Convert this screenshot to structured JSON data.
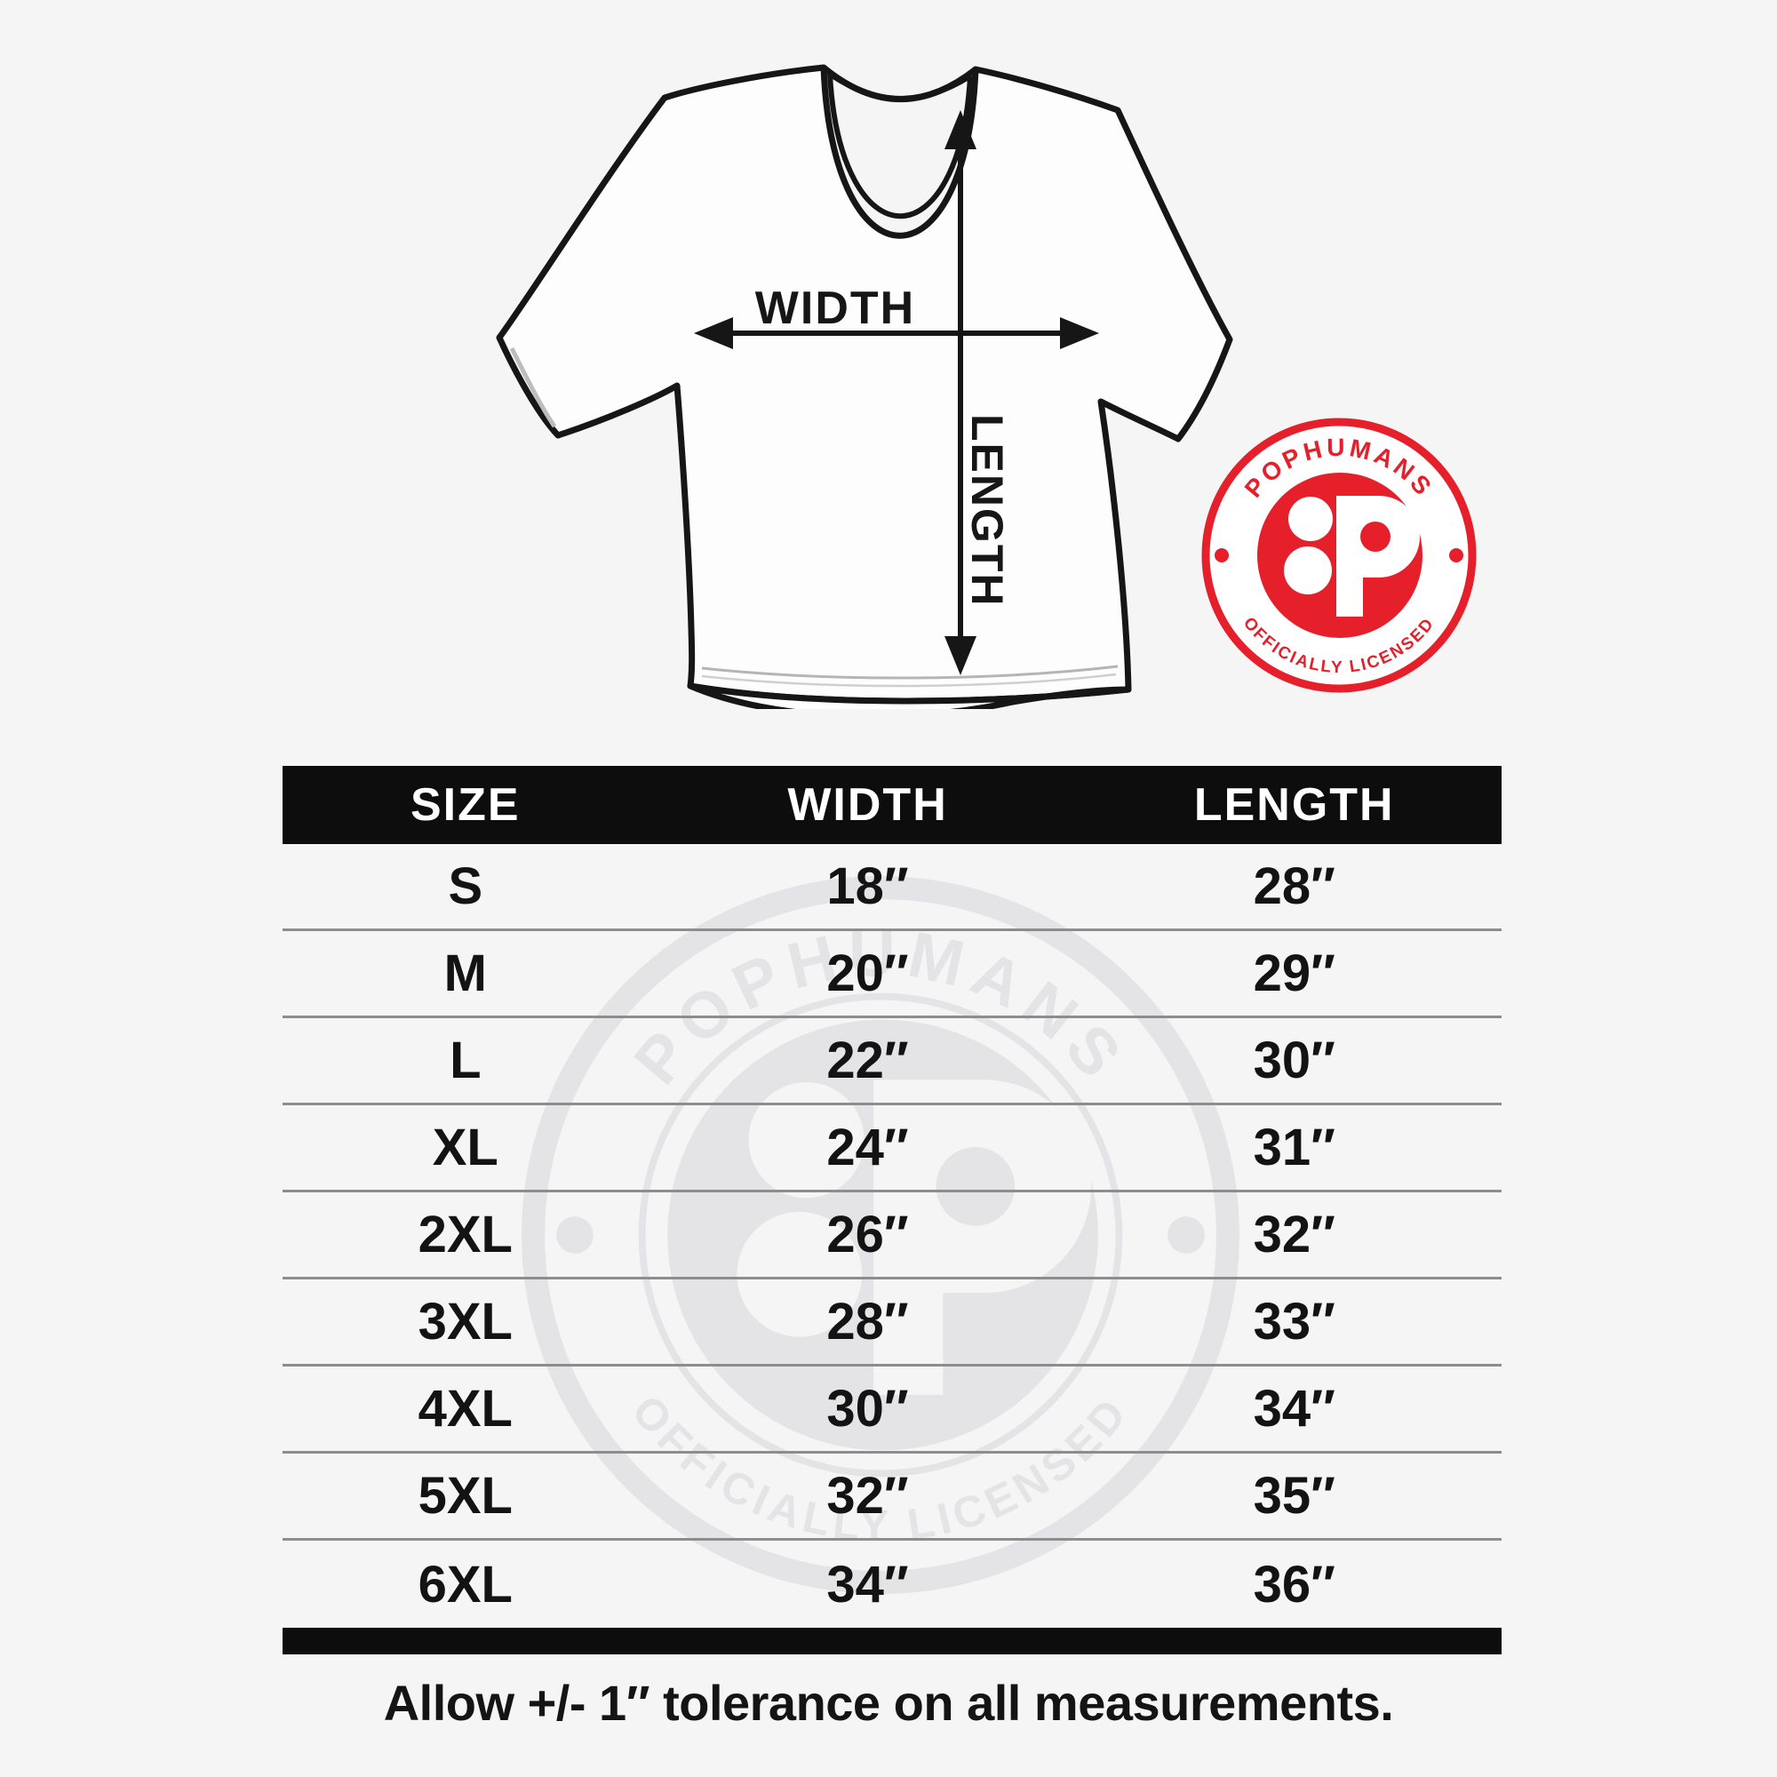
{
  "page": {
    "background_color": "#f5f5f6"
  },
  "diagram": {
    "width_label": "WIDTH",
    "length_label": "LENGTH"
  },
  "badge": {
    "top_text": "POPHUMANS",
    "bottom_text": "OFFICIALLY LICENSED",
    "logo_letter": "P",
    "red": "#e5202a"
  },
  "watermark": {
    "top_text": "POPHUMANS",
    "bottom_text": "OFFICIALLY LICENSED",
    "logo_letter": "P",
    "gray": "#e4e4e6"
  },
  "size_table": {
    "headers": [
      "SIZE",
      "WIDTH",
      "LENGTH"
    ],
    "rows": [
      {
        "size": "S",
        "width": "18″",
        "length": "28″"
      },
      {
        "size": "M",
        "width": "20″",
        "length": "29″"
      },
      {
        "size": "L",
        "width": "22″",
        "length": "30″"
      },
      {
        "size": "XL",
        "width": "24″",
        "length": "31″"
      },
      {
        "size": "2XL",
        "width": "26″",
        "length": "32″"
      },
      {
        "size": "3XL",
        "width": "28″",
        "length": "33″"
      },
      {
        "size": "4XL",
        "width": "30″",
        "length": "34″"
      },
      {
        "size": "5XL",
        "width": "32″",
        "length": "35″"
      },
      {
        "size": "6XL",
        "width": "34″",
        "length": "36″"
      }
    ]
  },
  "footer_note": "Allow +/- 1″ tolerance on all measurements.",
  "chart_data": {
    "type": "table",
    "columns": [
      "SIZE",
      "WIDTH",
      "LENGTH"
    ],
    "rows": [
      [
        "S",
        "18″",
        "28″"
      ],
      [
        "M",
        "20″",
        "29″"
      ],
      [
        "L",
        "22″",
        "30″"
      ],
      [
        "XL",
        "24″",
        "31″"
      ],
      [
        "2XL",
        "26″",
        "32″"
      ],
      [
        "3XL",
        "28″",
        "33″"
      ],
      [
        "4XL",
        "30″",
        "34″"
      ],
      [
        "5XL",
        "32″",
        "35″"
      ],
      [
        "6XL",
        "34″",
        "36″"
      ]
    ]
  }
}
